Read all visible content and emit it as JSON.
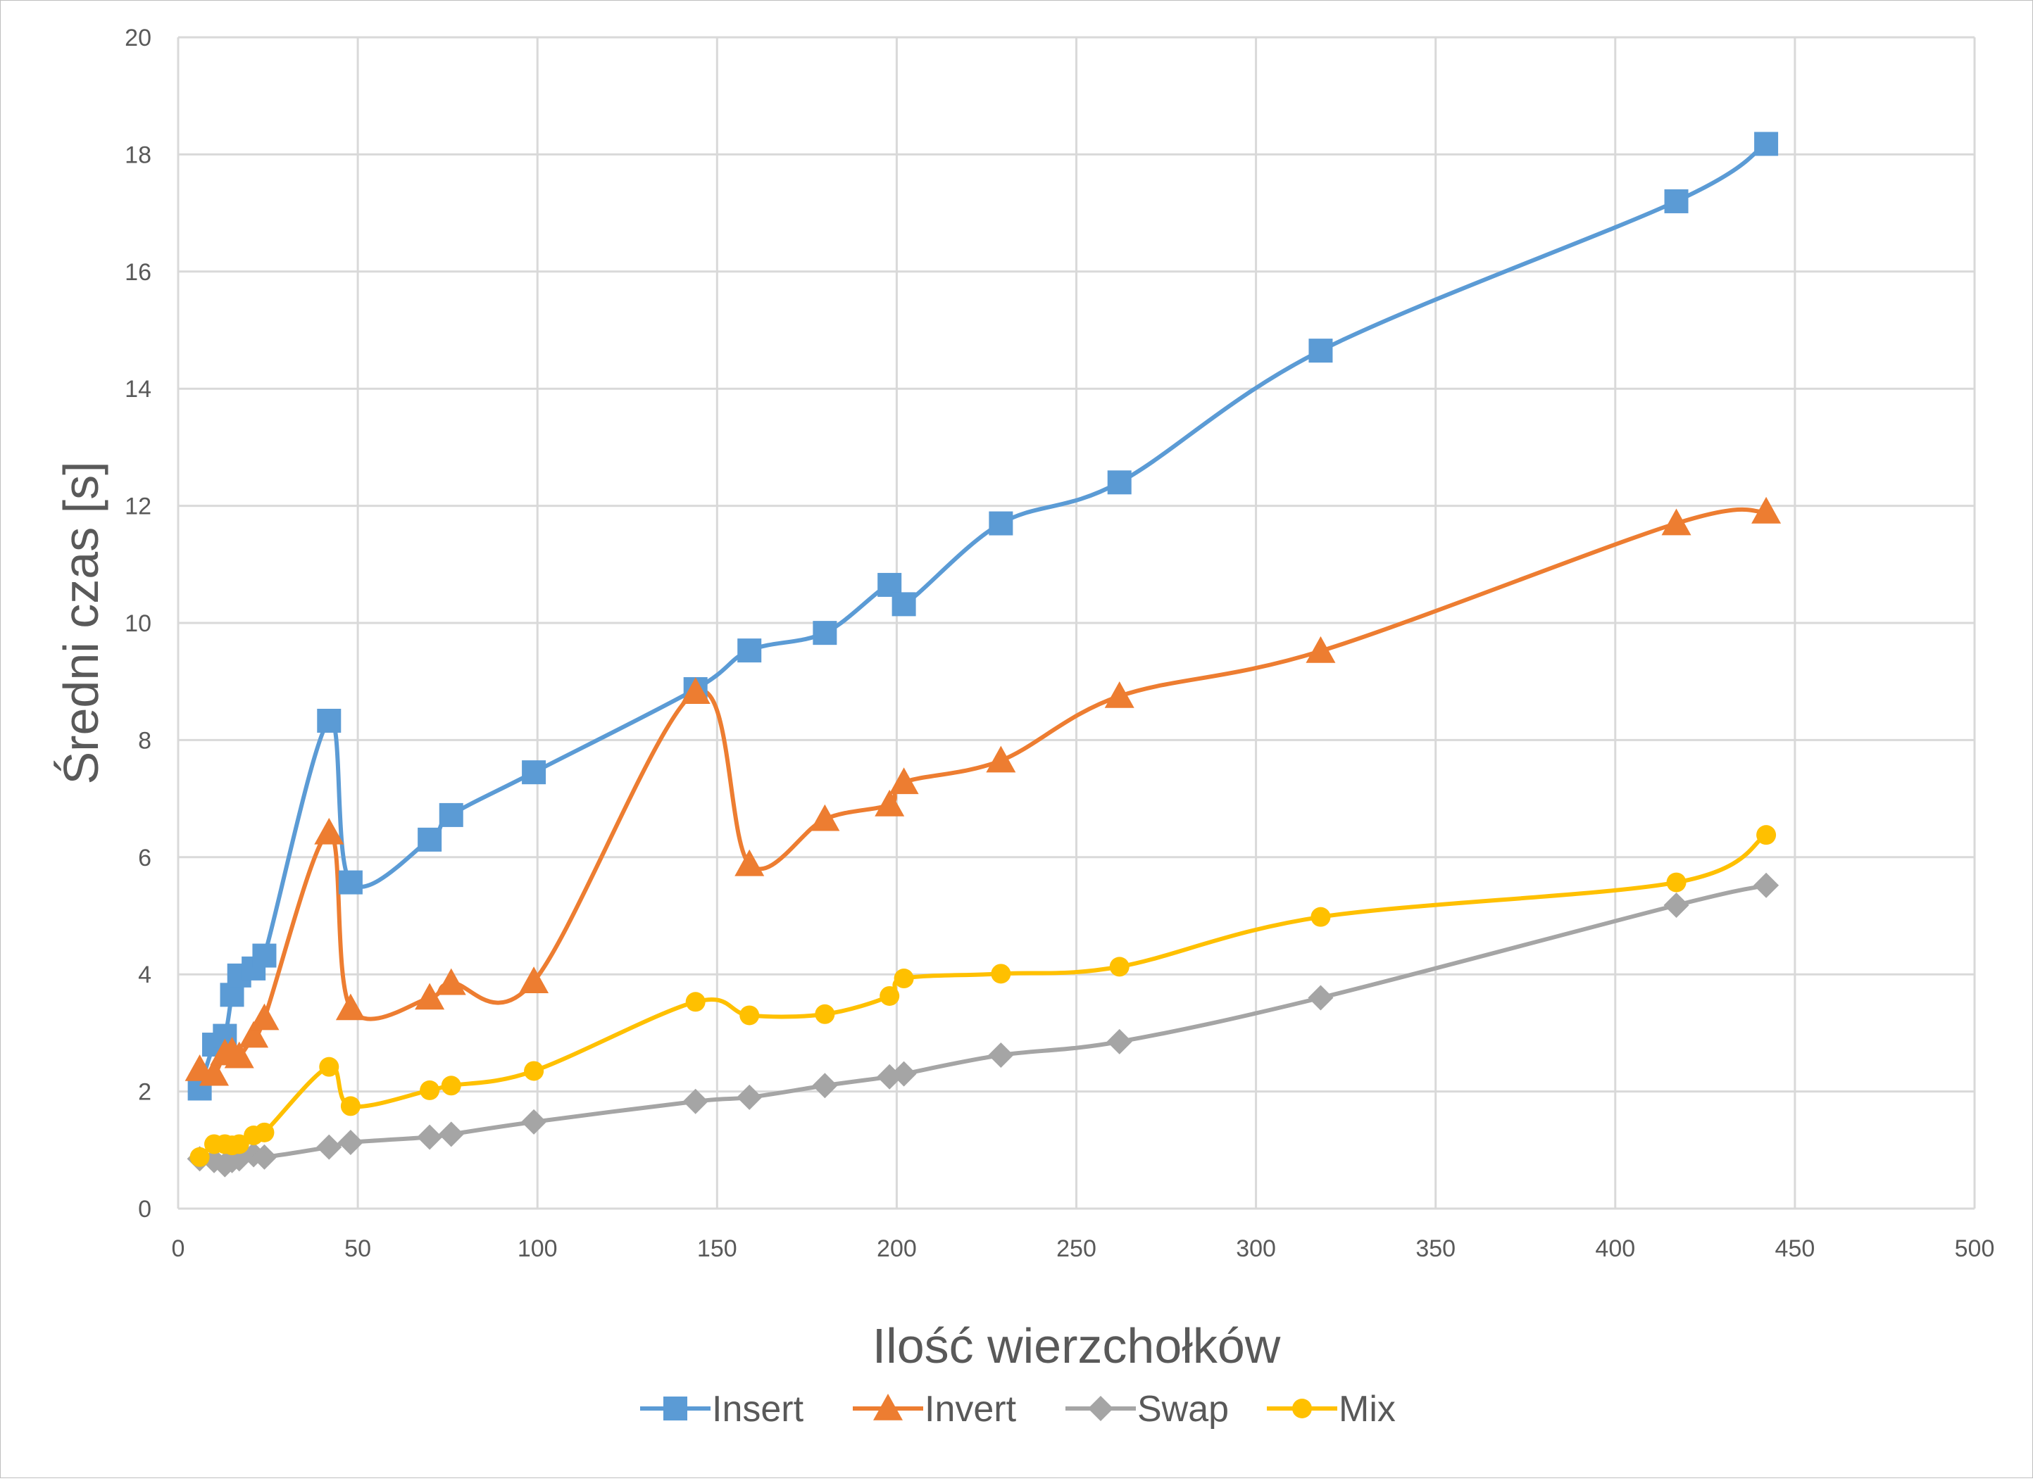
{
  "chart_data": {
    "type": "line",
    "title": "",
    "xlabel": "Ilość wierzchołków",
    "ylabel": "Średni czas [s]",
    "xlim": [
      0,
      500
    ],
    "ylim": [
      0,
      20
    ],
    "xticks": [
      0,
      50,
      100,
      150,
      200,
      250,
      300,
      350,
      400,
      450,
      500
    ],
    "yticks": [
      0,
      2,
      4,
      6,
      8,
      10,
      12,
      14,
      16,
      18,
      20
    ],
    "grid": true,
    "legend_position": "bottom",
    "smooth": true,
    "x": [
      6,
      10,
      13,
      15,
      17,
      21,
      24,
      42,
      48,
      70,
      76,
      99,
      144,
      159,
      180,
      198,
      202,
      229,
      262,
      318,
      417,
      442
    ],
    "series": [
      {
        "name": "Insert",
        "color": "#5b9bd5",
        "marker": "square",
        "values": [
          2.05,
          2.8,
          2.95,
          3.65,
          3.98,
          4.1,
          4.32,
          8.33,
          5.57,
          6.3,
          6.72,
          7.45,
          8.87,
          9.53,
          9.83,
          10.65,
          10.32,
          11.7,
          12.4,
          14.65,
          17.2,
          18.18
        ]
      },
      {
        "name": "Invert",
        "color": "#ed7d31",
        "marker": "triangle",
        "values": [
          2.38,
          2.3,
          2.65,
          2.68,
          2.6,
          2.95,
          3.25,
          6.42,
          3.42,
          3.6,
          3.85,
          3.88,
          8.82,
          5.88,
          6.65,
          6.9,
          7.28,
          7.65,
          8.75,
          9.52,
          11.7,
          11.9
        ]
      },
      {
        "name": "Swap",
        "color": "#a5a5a5",
        "marker": "diamond",
        "values": [
          0.85,
          0.82,
          0.75,
          0.82,
          0.85,
          0.92,
          0.88,
          1.05,
          1.13,
          1.22,
          1.27,
          1.48,
          1.83,
          1.9,
          2.1,
          2.25,
          2.3,
          2.62,
          2.85,
          3.6,
          5.18,
          5.52
        ]
      },
      {
        "name": "Mix",
        "color": "#ffc000",
        "marker": "circle",
        "values": [
          0.88,
          1.1,
          1.1,
          1.08,
          1.1,
          1.25,
          1.3,
          2.42,
          1.75,
          2.02,
          2.1,
          2.35,
          3.53,
          3.3,
          3.32,
          3.63,
          3.93,
          4.01,
          4.13,
          4.98,
          5.57,
          6.38
        ]
      }
    ]
  }
}
